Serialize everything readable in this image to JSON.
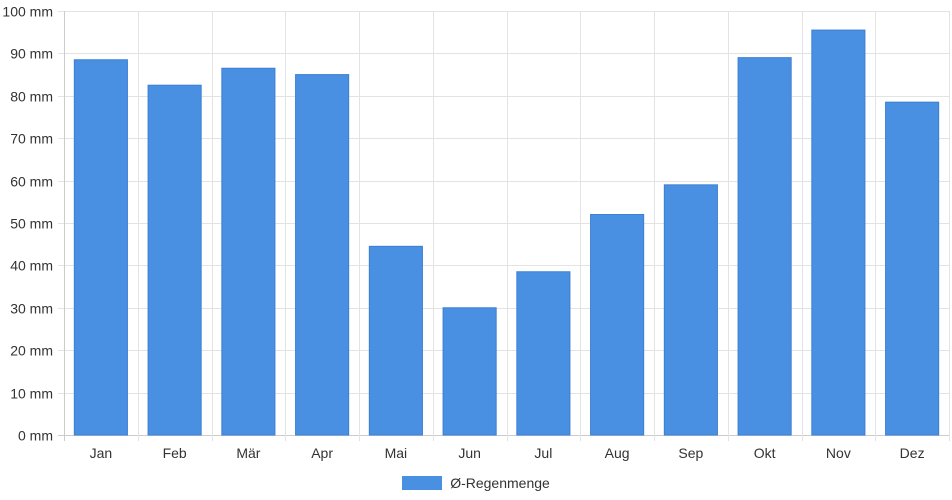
{
  "chart_data": {
    "type": "bar",
    "categories": [
      "Jan",
      "Feb",
      "Mär",
      "Apr",
      "Mai",
      "Jun",
      "Jul",
      "Aug",
      "Sep",
      "Okt",
      "Nov",
      "Dez"
    ],
    "series": [
      {
        "name": "Ø-Regenmenge",
        "values": [
          88.5,
          82.5,
          86.5,
          85,
          44.5,
          30,
          38.5,
          52,
          59,
          89,
          95.5,
          78.5
        ]
      }
    ],
    "ylim": [
      0,
      100
    ],
    "yticks": [
      "0 mm",
      "10 mm",
      "20 mm",
      "30 mm",
      "40 mm",
      "50 mm",
      "60 mm",
      "70 mm",
      "80 mm",
      "90 mm",
      "100 mm"
    ],
    "y_unit": "mm",
    "grid": true,
    "legend_position": "bottom-center",
    "colors": {
      "bar": "#4a90e2",
      "grid": "#e3e3e3",
      "axis": "#cccccc"
    }
  }
}
